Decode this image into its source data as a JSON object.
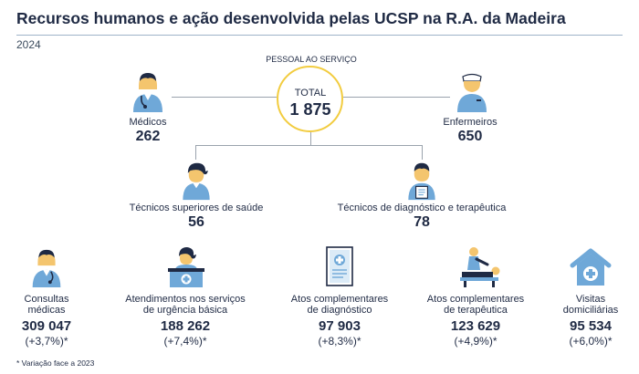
{
  "title": "Recursos humanos e ação desenvolvida pelas UCSP na R.A. da Madeira",
  "year": "2024",
  "staff": {
    "header": "PESSOAL AO SERVIÇO",
    "total_label": "TOTAL",
    "total_value": "1 875",
    "doctors": {
      "label": "Médicos",
      "value": "262",
      "icon": "doctor-icon"
    },
    "nurses": {
      "label": "Enfermeiros",
      "value": "650",
      "icon": "nurse-icon"
    },
    "health_technicians": {
      "label": "Técnicos superiores de saúde",
      "value": "56",
      "icon": "health-technician-icon"
    },
    "diagnostic_technicians": {
      "label": "Técnicos de diagnóstico e terapêutica",
      "value": "78",
      "icon": "diagnostic-technician-icon"
    }
  },
  "activity": [
    {
      "label_1": "Consultas",
      "label_2": "médicas",
      "value": "309 047",
      "variation": "(+3,7%)*",
      "icon": "doctor-consultation-icon"
    },
    {
      "label_1": "Atendimentos nos serviços",
      "label_2": "de urgência básica",
      "value": "188 262",
      "variation": "(+7,4%)*",
      "icon": "emergency-desk-icon"
    },
    {
      "label_1": "Atos complementares",
      "label_2": "de diagnóstico",
      "value": "97 903",
      "variation": "(+8,3%)*",
      "icon": "diagnostic-document-icon"
    },
    {
      "label_1": "Atos complementares",
      "label_2": "de terapêutica",
      "value": "123 629",
      "variation": "(+4,9%)*",
      "icon": "therapy-massage-icon"
    },
    {
      "label_1": "Visitas",
      "label_2": "domiciliárias",
      "value": "95 534",
      "variation": "(+6,0%)*",
      "icon": "home-visit-icon"
    }
  ],
  "footnote": "* Variação face a 2023",
  "colors": {
    "icon_blue": "#6fa8d8",
    "icon_dark": "#1f2a44",
    "skin": "#f4c56e",
    "circle": "#f2cc3f",
    "line": "#9aa3ad"
  }
}
